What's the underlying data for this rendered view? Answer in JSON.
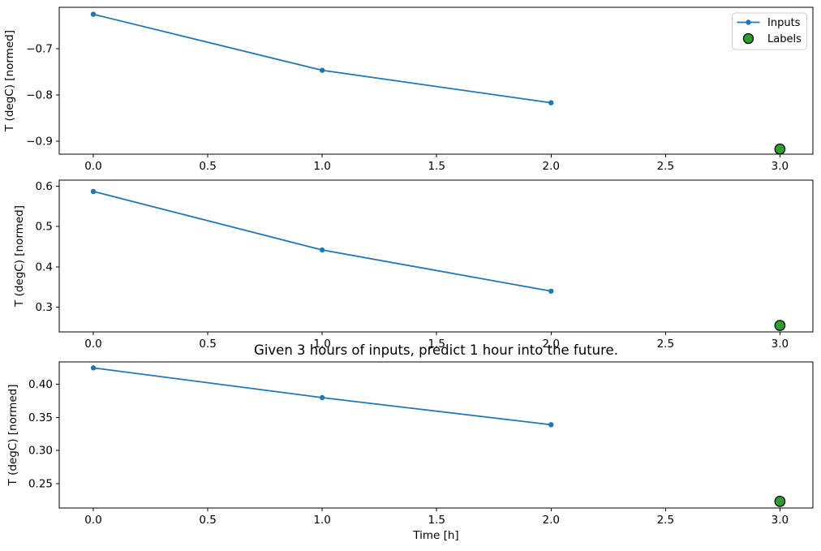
{
  "figure": {
    "background": "#ffffff",
    "frame_color": "#000000"
  },
  "legend": {
    "position": "top-right",
    "entries": [
      {
        "label": "Inputs",
        "type": "line-with-marker",
        "color": "#1f77b4"
      },
      {
        "label": "Labels",
        "type": "circle-marker",
        "color": "#2ca02c",
        "edge": "#000000"
      }
    ]
  },
  "chart_data": [
    {
      "type": "line",
      "title": "",
      "xlabel": "",
      "ylabel": "T (degC) [normed]",
      "xlim": [
        -0.149,
        3.144
      ],
      "ylim": [
        -0.928,
        -0.611
      ],
      "xticks": [
        0.0,
        0.5,
        1.0,
        1.5,
        2.0,
        2.5,
        3.0
      ],
      "xtick_labels": [
        "0.0",
        "0.5",
        "1.0",
        "1.5",
        "2.0",
        "2.5",
        "3.0"
      ],
      "yticks": [
        -0.9,
        -0.8,
        -0.7
      ],
      "ytick_labels": [
        "−0.9",
        "−0.8",
        "−0.7"
      ],
      "legend": true,
      "series": [
        {
          "name": "Inputs",
          "style": "line+marker",
          "color": "#1f77b4",
          "x": [
            0,
            1,
            2
          ],
          "y": [
            -0.626,
            -0.747,
            -0.817
          ]
        },
        {
          "name": "Labels",
          "style": "scatter",
          "color": "#2ca02c",
          "edge": "#000000",
          "x": [
            3
          ],
          "y": [
            -0.917
          ]
        }
      ]
    },
    {
      "type": "line",
      "title": "",
      "xlabel": "",
      "ylabel": "T (degC) [normed]",
      "xlim": [
        -0.149,
        3.144
      ],
      "ylim": [
        0.239,
        0.615
      ],
      "xticks": [
        0.0,
        0.5,
        1.0,
        1.5,
        2.0,
        2.5,
        3.0
      ],
      "xtick_labels": [
        "0.0",
        "0.5",
        "1.0",
        "1.5",
        "2.0",
        "2.5",
        "3.0"
      ],
      "yticks": [
        0.3,
        0.4,
        0.5,
        0.6
      ],
      "ytick_labels": [
        "0.3",
        "0.4",
        "0.5",
        "0.6"
      ],
      "legend": false,
      "series": [
        {
          "name": "Inputs",
          "style": "line+marker",
          "color": "#1f77b4",
          "x": [
            0,
            1,
            2
          ],
          "y": [
            0.587,
            0.442,
            0.34
          ]
        },
        {
          "name": "Labels",
          "style": "scatter",
          "color": "#2ca02c",
          "edge": "#000000",
          "x": [
            3
          ],
          "y": [
            0.255
          ]
        }
      ]
    },
    {
      "type": "line",
      "title": "Given 3 hours of inputs, predict 1 hour into the future.",
      "xlabel": "Time [h]",
      "ylabel": "T (degC) [normed]",
      "xlim": [
        -0.149,
        3.144
      ],
      "ylim": [
        0.213,
        0.434
      ],
      "xticks": [
        0.0,
        0.5,
        1.0,
        1.5,
        2.0,
        2.5,
        3.0
      ],
      "xtick_labels": [
        "0.0",
        "0.5",
        "1.0",
        "1.5",
        "2.0",
        "2.5",
        "3.0"
      ],
      "yticks": [
        0.25,
        0.3,
        0.35,
        0.4
      ],
      "ytick_labels": [
        "0.25",
        "0.30",
        "0.35",
        "0.40"
      ],
      "legend": false,
      "series": [
        {
          "name": "Inputs",
          "style": "line+marker",
          "color": "#1f77b4",
          "x": [
            0,
            1,
            2
          ],
          "y": [
            0.425,
            0.38,
            0.339
          ]
        },
        {
          "name": "Labels",
          "style": "scatter",
          "color": "#2ca02c",
          "edge": "#000000",
          "x": [
            3
          ],
          "y": [
            0.223
          ]
        }
      ]
    }
  ]
}
